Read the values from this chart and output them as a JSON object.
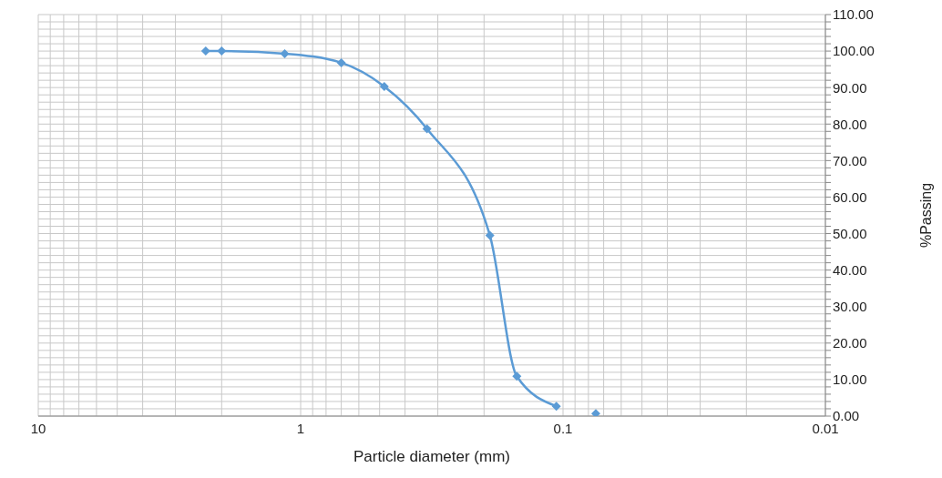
{
  "chart_data": {
    "type": "line",
    "xlabel": "Particle diameter (mm)",
    "ylabel": "%Passing",
    "log": "x",
    "grid": true,
    "marker": "diamond",
    "line_style": "solid",
    "xlim": [
      10,
      0.01
    ],
    "xticks": [
      10,
      {
        "value": 9,
        "label": null
      },
      {
        "value": 8,
        "label": null
      },
      {
        "value": 7,
        "label": null
      },
      {
        "value": 6,
        "label": null
      },
      {
        "value": 5,
        "label": null
      },
      {
        "value": 4,
        "label": null
      },
      {
        "value": 3,
        "label": null
      },
      {
        "value": 2,
        "label": null
      },
      1,
      {
        "value": 0.9,
        "label": null
      },
      {
        "value": 0.8,
        "label": null
      },
      {
        "value": 0.7,
        "label": null
      },
      {
        "value": 0.6,
        "label": null
      },
      {
        "value": 0.5,
        "label": null
      },
      {
        "value": 0.4,
        "label": null
      },
      {
        "value": 0.3,
        "label": null
      },
      {
        "value": 0.2,
        "label": null
      },
      0.1,
      {
        "value": 0.09,
        "label": null
      },
      {
        "value": 0.08,
        "label": null
      },
      {
        "value": 0.07,
        "label": null
      },
      {
        "value": 0.06,
        "label": null
      },
      {
        "value": 0.05,
        "label": null
      },
      {
        "value": 0.04,
        "label": null
      },
      {
        "value": 0.03,
        "label": null
      },
      {
        "value": 0.02,
        "label": null
      },
      0.01
    ],
    "ylim": [
      0,
      110
    ],
    "yticks": [
      {
        "value": 0,
        "label": "0.00"
      },
      {
        "value": 2,
        "label": null
      },
      {
        "value": 4,
        "label": null
      },
      {
        "value": 6,
        "label": null
      },
      {
        "value": 8,
        "label": null
      },
      {
        "value": 10,
        "label": "10.00"
      },
      {
        "value": 12,
        "label": null
      },
      {
        "value": 14,
        "label": null
      },
      {
        "value": 16,
        "label": null
      },
      {
        "value": 18,
        "label": null
      },
      {
        "value": 20,
        "label": "20.00"
      },
      {
        "value": 22,
        "label": null
      },
      {
        "value": 24,
        "label": null
      },
      {
        "value": 26,
        "label": null
      },
      {
        "value": 28,
        "label": null
      },
      {
        "value": 30,
        "label": "30.00"
      },
      {
        "value": 32,
        "label": null
      },
      {
        "value": 34,
        "label": null
      },
      {
        "value": 36,
        "label": null
      },
      {
        "value": 38,
        "label": null
      },
      {
        "value": 40,
        "label": "40.00"
      },
      {
        "value": 42,
        "label": null
      },
      {
        "value": 44,
        "label": null
      },
      {
        "value": 46,
        "label": null
      },
      {
        "value": 48,
        "label": null
      },
      {
        "value": 50,
        "label": "50.00"
      },
      {
        "value": 52,
        "label": null
      },
      {
        "value": 54,
        "label": null
      },
      {
        "value": 56,
        "label": null
      },
      {
        "value": 58,
        "label": null
      },
      {
        "value": 60,
        "label": "60.00"
      },
      {
        "value": 62,
        "label": null
      },
      {
        "value": 64,
        "label": null
      },
      {
        "value": 66,
        "label": null
      },
      {
        "value": 68,
        "label": null
      },
      {
        "value": 70,
        "label": "70.00"
      },
      {
        "value": 72,
        "label": null
      },
      {
        "value": 74,
        "label": null
      },
      {
        "value": 76,
        "label": null
      },
      {
        "value": 78,
        "label": null
      },
      {
        "value": 80,
        "label": "80.00"
      },
      {
        "value": 82,
        "label": null
      },
      {
        "value": 84,
        "label": null
      },
      {
        "value": 86,
        "label": null
      },
      {
        "value": 88,
        "label": null
      },
      {
        "value": 90,
        "label": "90.00"
      },
      {
        "value": 92,
        "label": null
      },
      {
        "value": 94,
        "label": null
      },
      {
        "value": 96,
        "label": null
      },
      {
        "value": 98,
        "label": null
      },
      {
        "value": 100,
        "label": "100.00"
      },
      {
        "value": 102,
        "label": null
      },
      {
        "value": 104,
        "label": null
      },
      {
        "value": 106,
        "label": null
      },
      {
        "value": 108,
        "label": null
      },
      {
        "value": 110,
        "label": "110.00"
      }
    ],
    "series": [
      {
        "color": "#5b9bd5",
        "x": [
          2.3,
          2.0,
          1.15,
          0.7,
          0.48,
          0.33,
          0.19,
          0.15,
          0.106
        ],
        "values": [
          100,
          100,
          99.3,
          96.8,
          90.3,
          78.7,
          49.5,
          10.9,
          2.7
        ]
      },
      {
        "type": "scatter",
        "color": "#5b9bd5",
        "x": [
          0.075
        ],
        "values": [
          0.7
        ]
      }
    ]
  }
}
